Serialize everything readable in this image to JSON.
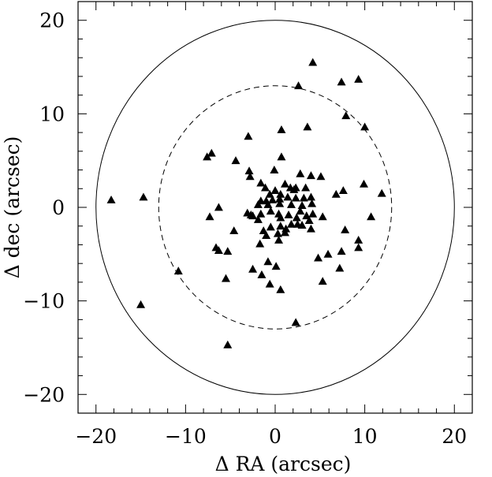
{
  "chart_data": {
    "type": "scatter",
    "title": "",
    "xlabel": "Δ RA (arcsec)",
    "ylabel": "Δ dec (arcsec)",
    "xlim": [
      -22,
      22
    ],
    "ylim": [
      -22,
      22
    ],
    "xticks": [
      -20,
      -10,
      0,
      10,
      20
    ],
    "yticks": [
      -20,
      -10,
      0,
      10,
      20
    ],
    "xtick_labels": [
      "−20",
      "−10",
      "0",
      "10",
      "20"
    ],
    "ytick_labels": [
      "−20",
      "−10",
      "0",
      "10",
      "20"
    ],
    "minor_tick_step": 2,
    "marker": "filled-triangle",
    "grid": false,
    "circles": [
      {
        "style": "solid",
        "center": [
          0,
          0
        ],
        "radius": 20
      },
      {
        "style": "dashed",
        "center": [
          0,
          0
        ],
        "radius": 13
      }
    ],
    "points": [
      [
        4.2,
        15.5
      ],
      [
        2.6,
        13.0
      ],
      [
        7.4,
        13.4
      ],
      [
        9.3,
        13.7
      ],
      [
        7.9,
        9.8
      ],
      [
        10.0,
        8.6
      ],
      [
        3.6,
        8.6
      ],
      [
        0.7,
        8.3
      ],
      [
        -3.0,
        7.6
      ],
      [
        -7.1,
        5.8
      ],
      [
        -7.6,
        5.4
      ],
      [
        -4.4,
        5.0
      ],
      [
        0.7,
        5.4
      ],
      [
        -2.9,
        3.9
      ],
      [
        -0.1,
        4.0
      ],
      [
        2.8,
        3.6
      ],
      [
        4.0,
        3.4
      ],
      [
        5.1,
        3.3
      ],
      [
        -2.8,
        3.3
      ],
      [
        -1.6,
        2.6
      ],
      [
        -1.1,
        2.1
      ],
      [
        0.0,
        1.8
      ],
      [
        1.1,
        2.5
      ],
      [
        1.7,
        2.1
      ],
      [
        2.3,
        2.1
      ],
      [
        3.4,
        2.1
      ],
      [
        2.1,
        1.9
      ],
      [
        7.6,
        1.8
      ],
      [
        6.8,
        1.4
      ],
      [
        9.9,
        2.5
      ],
      [
        11.9,
        1.5
      ],
      [
        -0.6,
        1.4
      ],
      [
        0.6,
        1.4
      ],
      [
        -1.6,
        0.7
      ],
      [
        -1.0,
        0.7
      ],
      [
        -0.3,
        0.8
      ],
      [
        0.5,
        0.9
      ],
      [
        1.4,
        1.1
      ],
      [
        2.3,
        1.0
      ],
      [
        3.2,
        1.0
      ],
      [
        4.0,
        1.1
      ],
      [
        -1.9,
        0.3
      ],
      [
        -0.8,
        0.3
      ],
      [
        0.5,
        0.4
      ],
      [
        1.8,
        0.3
      ],
      [
        3.0,
        0.2
      ],
      [
        4.1,
        0.4
      ],
      [
        -6.3,
        0.0
      ],
      [
        -7.3,
        -1.0
      ],
      [
        -3.1,
        -0.6
      ],
      [
        -2.5,
        -0.9
      ],
      [
        -1.6,
        -0.7
      ],
      [
        -0.5,
        -0.4
      ],
      [
        0.4,
        -0.7
      ],
      [
        1.5,
        -0.8
      ],
      [
        2.8,
        -0.4
      ],
      [
        3.5,
        -0.9
      ],
      [
        4.2,
        -0.7
      ],
      [
        -2.7,
        -0.8
      ],
      [
        -1.9,
        -1.3
      ],
      [
        0.6,
        -1.1
      ],
      [
        2.4,
        -1.1
      ],
      [
        3.8,
        -1.4
      ],
      [
        5.3,
        -1.0
      ],
      [
        10.7,
        -1.0
      ],
      [
        -18.3,
        0.8
      ],
      [
        -14.7,
        1.1
      ],
      [
        -4.6,
        -2.5
      ],
      [
        -1.3,
        -2.5
      ],
      [
        -0.5,
        -2.1
      ],
      [
        0.6,
        -2.0
      ],
      [
        1.2,
        -2.3
      ],
      [
        1.8,
        -1.8
      ],
      [
        2.5,
        -1.8
      ],
      [
        3.0,
        -1.9
      ],
      [
        4.0,
        -2.3
      ],
      [
        -1.0,
        -3.0
      ],
      [
        0.3,
        -2.8
      ],
      [
        1.1,
        -2.7
      ],
      [
        7.8,
        -2.4
      ],
      [
        9.3,
        -3.5
      ],
      [
        9.3,
        -4.3
      ],
      [
        -6.6,
        -4.3
      ],
      [
        -6.3,
        -4.6
      ],
      [
        -5.3,
        -4.7
      ],
      [
        -1.7,
        -3.9
      ],
      [
        0.4,
        -3.5
      ],
      [
        5.9,
        -5.0
      ],
      [
        7.4,
        -4.7
      ],
      [
        4.8,
        -5.4
      ],
      [
        -0.8,
        -5.8
      ],
      [
        -2.5,
        -6.6
      ],
      [
        0.1,
        -6.3
      ],
      [
        7.2,
        -6.5
      ],
      [
        -10.8,
        -6.8
      ],
      [
        -5.5,
        -7.6
      ],
      [
        -1.5,
        -7.2
      ],
      [
        5.3,
        -7.9
      ],
      [
        -0.6,
        -8.2
      ],
      [
        0.6,
        -8.8
      ],
      [
        -15.0,
        -10.4
      ],
      [
        2.3,
        -12.3
      ],
      [
        -5.3,
        -14.7
      ]
    ]
  }
}
